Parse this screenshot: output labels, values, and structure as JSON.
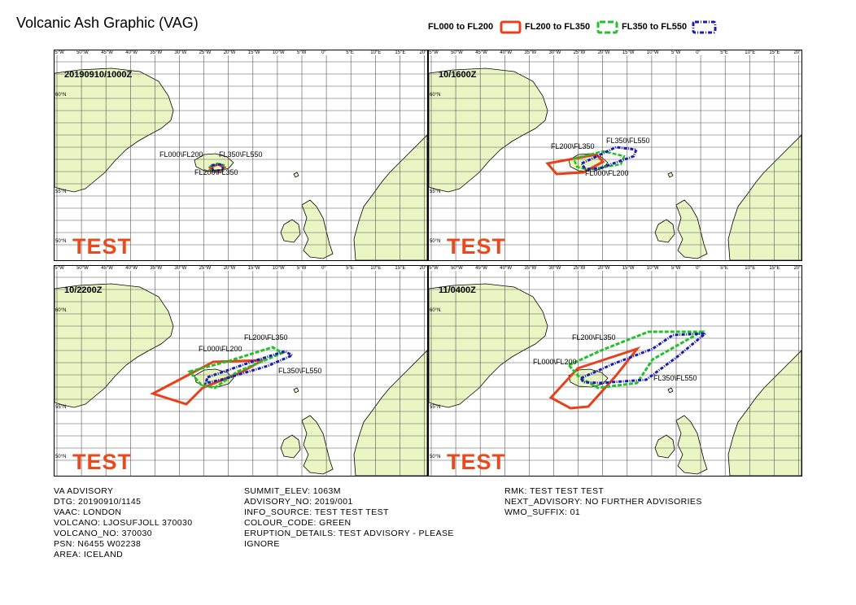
{
  "title": "Volcanic Ash Graphic (VAG)",
  "legend": [
    {
      "label": "FL000 to FL200",
      "color": "#e8401c",
      "dash": "none"
    },
    {
      "label": "FL200 to FL350",
      "color": "#22c02a",
      "dash": "dashed"
    },
    {
      "label": "FL350 to FL550",
      "color": "#1a1ab4",
      "dash": "dotted"
    }
  ],
  "grid": {
    "lon_labels": [
      "55°W",
      "50°W",
      "45°W",
      "40°W",
      "35°W",
      "30°W",
      "25°W",
      "20°W",
      "15°W",
      "10°W",
      "5°W",
      "0°",
      "5°E",
      "10°E",
      "15°E",
      "20°E"
    ],
    "lat_labels": [
      "60°N",
      "55°N",
      "50°N"
    ]
  },
  "colors": {
    "land": "#eaf5c4",
    "coast": "#000000",
    "grid": "#555555",
    "test": "#e8491d"
  },
  "panels": [
    {
      "time": "20190910/1000Z",
      "watermark": "TEST",
      "labels": [
        "FL000\\FL200",
        "FL350\\FL550",
        "FL200\\FL350"
      ]
    },
    {
      "time": "10/1600Z",
      "watermark": "TEST",
      "labels": [
        "FL200\\FL350",
        "FL350\\FL550",
        "FL000\\FL200"
      ]
    },
    {
      "time": "10/2200Z",
      "watermark": "TEST",
      "labels": [
        "FL200\\FL350",
        "FL000\\FL200",
        "FL350\\FL550"
      ]
    },
    {
      "time": "11/0400Z",
      "watermark": "TEST",
      "labels": [
        "FL200\\FL350",
        "FL000\\FL200",
        "FL350\\FL550"
      ]
    }
  ],
  "advisory": {
    "col1": [
      "VA ADVISORY",
      "DTG: 20190910/1145",
      "VAAC: LONDON",
      "VOLCANO: LJOSUFJOLL 370030",
      "VOLCANO_NO: 370030",
      "PSN: N6455 W02238",
      "AREA: ICELAND"
    ],
    "col2": [
      "SUMMIT_ELEV: 1063M",
      "ADVISORY_NO: 2019/001",
      "INFO_SOURCE: TEST TEST TEST",
      "COLOUR_CODE: GREEN",
      "ERUPTION_DETAILS: TEST ADVISORY - PLEASE",
      "IGNORE"
    ],
    "col3": [
      "RMK: TEST TEST TEST",
      "NEXT_ADVISORY: NO FURTHER ADVISORIES",
      "WMO_SUFFIX: 01"
    ]
  }
}
